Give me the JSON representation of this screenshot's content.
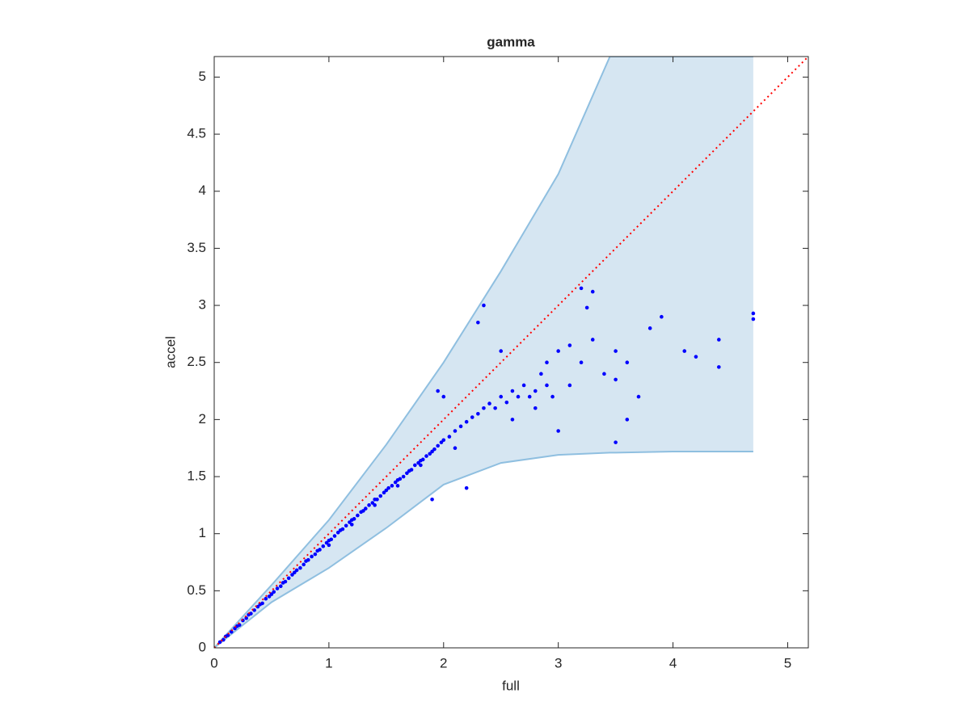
{
  "chart_data": {
    "type": "scatter",
    "title": "gamma",
    "xlabel": "full",
    "ylabel": "accel",
    "xlim": [
      0,
      5.18
    ],
    "ylim": [
      0,
      5.18
    ],
    "xticks": [
      0,
      1,
      2,
      3,
      4,
      5
    ],
    "yticks": [
      0,
      0.5,
      1,
      1.5,
      2,
      2.5,
      3,
      3.5,
      4,
      4.5,
      5
    ],
    "band": {
      "color": "#d6e6f2",
      "edge_color": "#8fbfe0",
      "x": [
        0,
        0.5,
        1,
        1.5,
        2,
        2.5,
        3,
        3.45,
        3.5,
        4,
        4.7
      ],
      "upper": [
        0,
        0.55,
        1.12,
        1.78,
        2.5,
        3.3,
        4.15,
        5.18,
        5.18,
        5.18,
        5.18
      ],
      "lower": [
        0,
        0.4,
        0.7,
        1.05,
        1.43,
        1.62,
        1.69,
        1.71,
        1.71,
        1.72,
        1.72
      ]
    },
    "reference_line": {
      "color": "#ff0000",
      "x": [
        0,
        5.18
      ],
      "y": [
        0,
        5.18
      ]
    },
    "series": [
      {
        "color": "#0000ff",
        "x": [
          0.05,
          0.08,
          0.1,
          0.12,
          0.15,
          0.18,
          0.2,
          0.22,
          0.25,
          0.28,
          0.3,
          0.32,
          0.35,
          0.38,
          0.4,
          0.42,
          0.45,
          0.48,
          0.5,
          0.52,
          0.55,
          0.58,
          0.6,
          0.62,
          0.65,
          0.68,
          0.7,
          0.72,
          0.75,
          0.78,
          0.8,
          0.82,
          0.85,
          0.88,
          0.9,
          0.92,
          0.95,
          0.98,
          1.0,
          1.02,
          1.05,
          1.08,
          1.1,
          1.12,
          1.15,
          1.18,
          1.2,
          1.22,
          1.25,
          1.28,
          1.3,
          1.32,
          1.35,
          1.38,
          1.4,
          1.42,
          1.45,
          1.48,
          1.5,
          1.52,
          1.55,
          1.58,
          1.6,
          1.62,
          1.65,
          1.68,
          1.7,
          1.72,
          1.75,
          1.78,
          1.8,
          1.82,
          1.85,
          1.88,
          1.9,
          1.92,
          1.95,
          1.98,
          2.0,
          2.05,
          2.1,
          2.15,
          2.2,
          2.25,
          2.3,
          2.35,
          2.4,
          2.45,
          2.5,
          2.55,
          2.6,
          2.65,
          2.7,
          2.75,
          2.8,
          2.85,
          2.9,
          2.95,
          3.0,
          3.1,
          3.2,
          3.3,
          3.4,
          3.5,
          3.6,
          3.7,
          3.8,
          3.9,
          4.1,
          4.2,
          4.4,
          4.7,
          1.0,
          1.2,
          1.4,
          1.6,
          1.8,
          1.9,
          2.0,
          2.2,
          2.3,
          2.5,
          2.6,
          2.8,
          3.0,
          3.2,
          3.3,
          3.5,
          3.5,
          3.6,
          4.4,
          4.7,
          2.35,
          1.95,
          3.25,
          2.1,
          2.9,
          3.1
        ],
        "values": [
          0.05,
          0.07,
          0.1,
          0.11,
          0.14,
          0.17,
          0.19,
          0.2,
          0.24,
          0.26,
          0.29,
          0.3,
          0.33,
          0.36,
          0.38,
          0.39,
          0.43,
          0.45,
          0.47,
          0.49,
          0.52,
          0.54,
          0.57,
          0.58,
          0.61,
          0.64,
          0.66,
          0.68,
          0.7,
          0.73,
          0.76,
          0.77,
          0.8,
          0.82,
          0.85,
          0.86,
          0.89,
          0.92,
          0.94,
          0.95,
          0.98,
          1.01,
          1.03,
          1.04,
          1.07,
          1.1,
          1.12,
          1.13,
          1.16,
          1.19,
          1.2,
          1.22,
          1.25,
          1.27,
          1.3,
          1.3,
          1.33,
          1.36,
          1.38,
          1.4,
          1.42,
          1.45,
          1.47,
          1.48,
          1.5,
          1.53,
          1.55,
          1.56,
          1.6,
          1.62,
          1.64,
          1.65,
          1.68,
          1.7,
          1.72,
          1.74,
          1.77,
          1.8,
          1.82,
          1.85,
          1.9,
          1.94,
          1.98,
          2.02,
          2.05,
          2.1,
          2.14,
          2.1,
          2.2,
          2.15,
          2.25,
          2.2,
          2.3,
          2.2,
          2.25,
          2.4,
          2.5,
          2.2,
          2.6,
          2.3,
          2.5,
          2.7,
          2.4,
          2.6,
          2.5,
          2.2,
          2.8,
          2.9,
          2.6,
          2.55,
          2.7,
          2.93,
          0.9,
          1.08,
          1.25,
          1.42,
          1.6,
          1.3,
          2.2,
          1.4,
          2.85,
          2.6,
          2.0,
          2.1,
          1.9,
          3.15,
          3.12,
          1.8,
          2.35,
          2.0,
          2.46,
          2.88,
          3.0,
          2.25,
          2.98,
          1.75,
          2.3,
          2.65
        ]
      }
    ]
  }
}
